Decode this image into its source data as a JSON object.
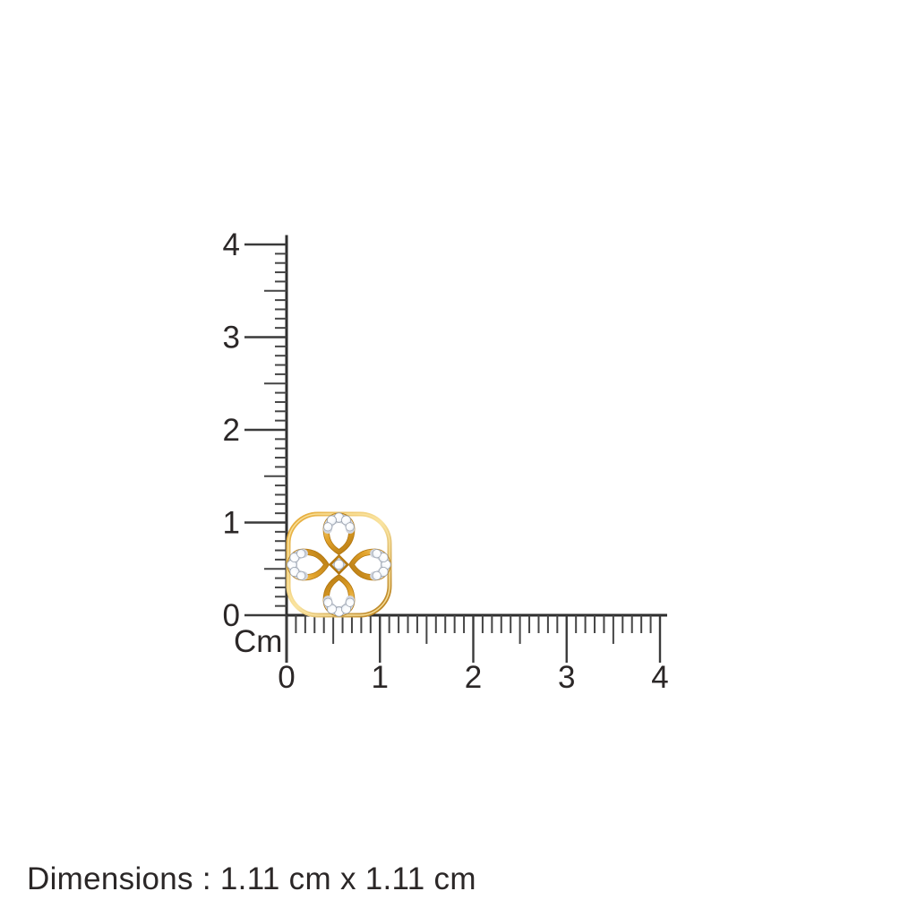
{
  "page": {
    "background": "#ffffff"
  },
  "ruler": {
    "unit_label": "Cm",
    "cm_min": 0,
    "cm_max": 4,
    "vertical_labels": [
      "4",
      "3",
      "2",
      "1",
      "0"
    ],
    "horizontal_labels": [
      "0",
      "1",
      "2",
      "3",
      "4"
    ],
    "line_color": "#2e2e2e",
    "tick_color": "#454545",
    "label_color": "#2b2727"
  },
  "product": {
    "name": "gold-diamond-floral-stud-earring",
    "width_cm": "1.11",
    "height_cm": "1.11",
    "colors": {
      "gold_light": "#F9E3A0",
      "gold_mid": "#E3A42C",
      "gold_dark": "#B2760F",
      "setting_silver": "#D2D6DE",
      "diamond_white": "#F8FAFD",
      "diamond_edge": "#9BA3AF"
    }
  },
  "footer": {
    "dimensions_text": "Dimensions : 1.11 cm x 1.11 cm"
  }
}
